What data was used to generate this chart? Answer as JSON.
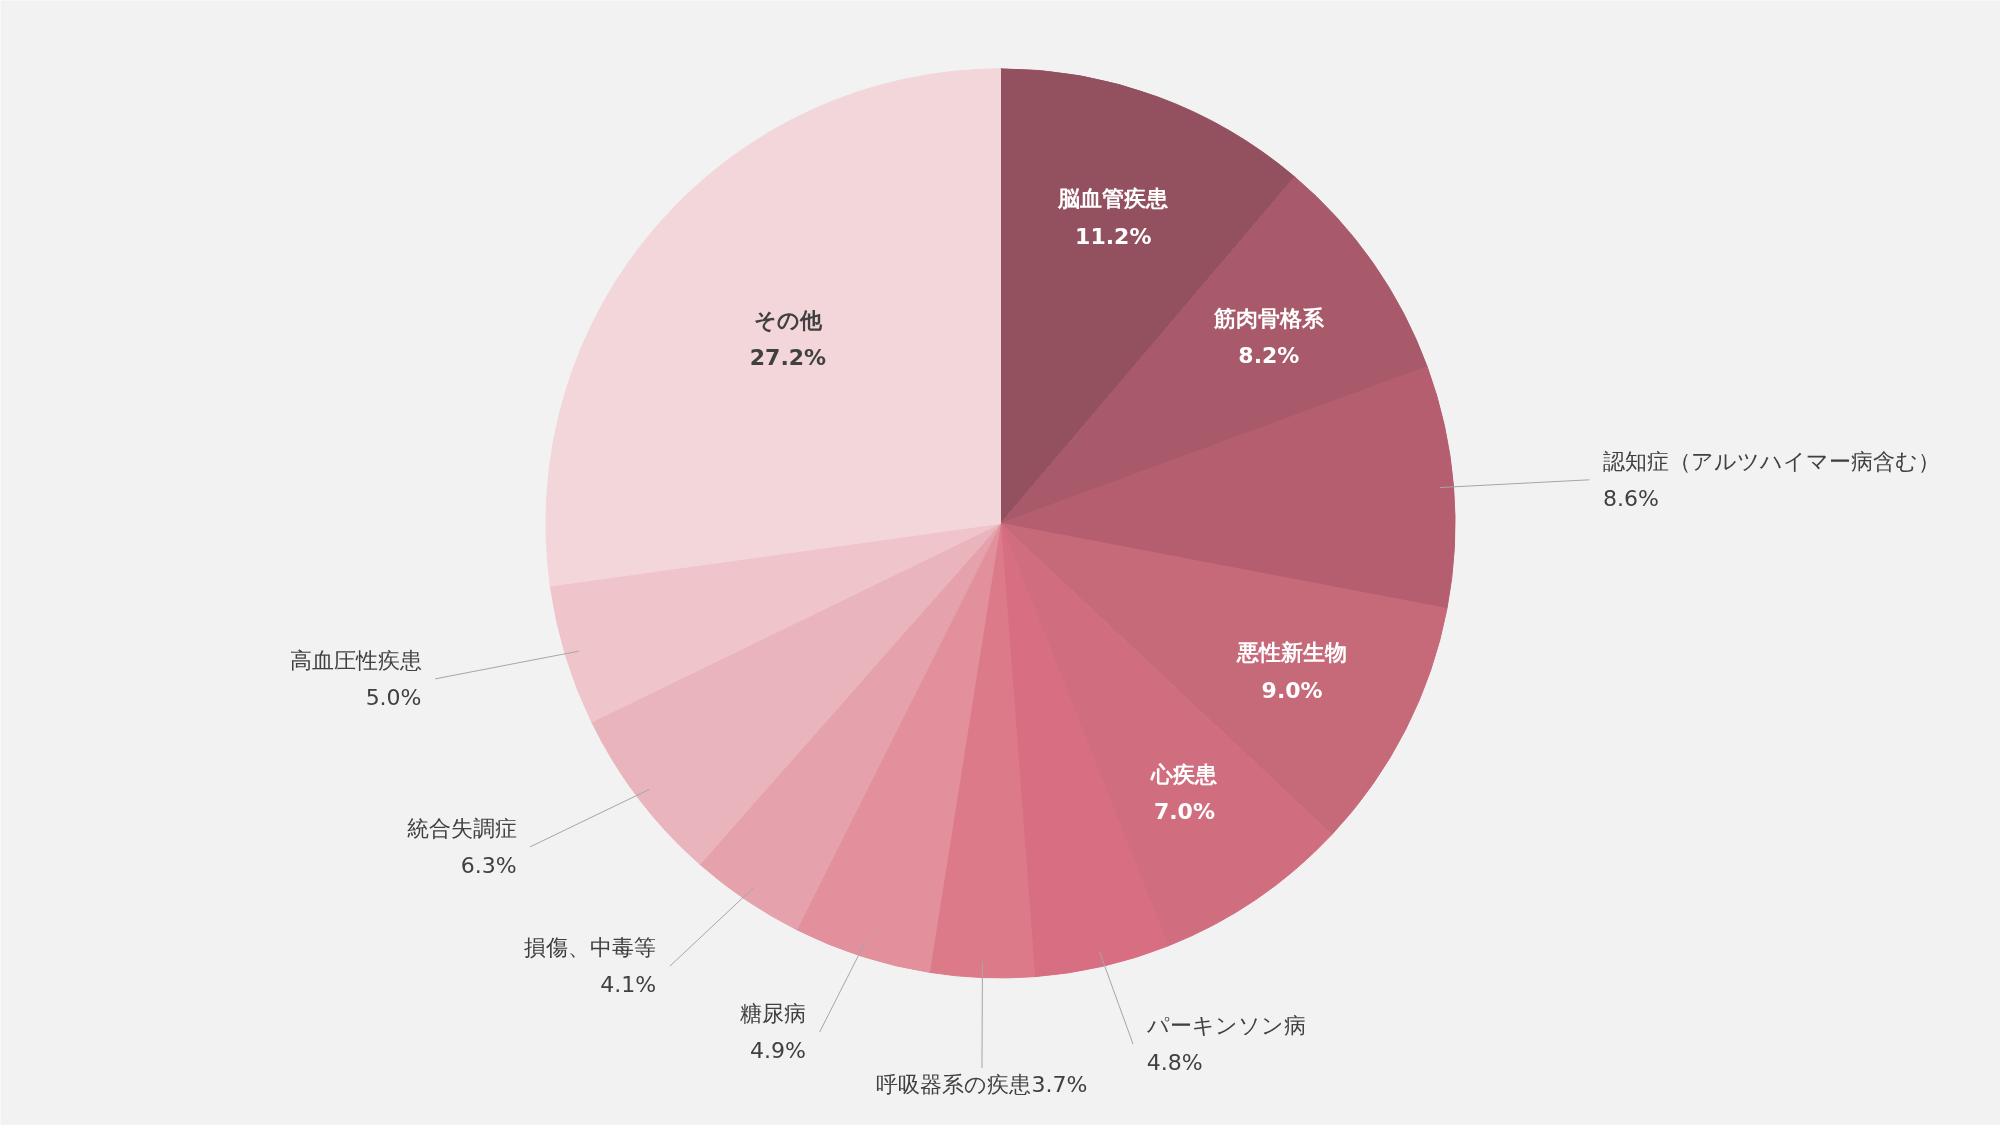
{
  "chart_data": {
    "type": "pie",
    "categories": [
      "脳血管疾患",
      "筋肉骨格系",
      "認知症（アルツハイマー病含む）",
      "悪性新生物",
      "心疾患",
      "パーキンソン病",
      "呼吸器系の疾患",
      "糖尿病",
      "損傷、中毒等",
      "統合失調症",
      "高血圧性疾患",
      "その他"
    ],
    "values": [
      11.2,
      8.2,
      8.6,
      9.0,
      7.0,
      4.8,
      3.7,
      4.9,
      4.1,
      6.3,
      5.0,
      27.2
    ],
    "value_labels": [
      "11.2%",
      "8.2%",
      "8.6%",
      "9.0%",
      "7.0%",
      "4.8%",
      "3.7%",
      "4.9%",
      "4.1%",
      "6.3%",
      "5.0%",
      "27.2%"
    ],
    "colors": [
      "#93505e",
      "#a85a6a",
      "#b55e70",
      "#c66a7a",
      "#d06e80",
      "#d86e82",
      "#dc7a8a",
      "#e2909c",
      "#e6a2ac",
      "#eab4bc",
      "#f0c4cb",
      "#f3d6da"
    ]
  }
}
